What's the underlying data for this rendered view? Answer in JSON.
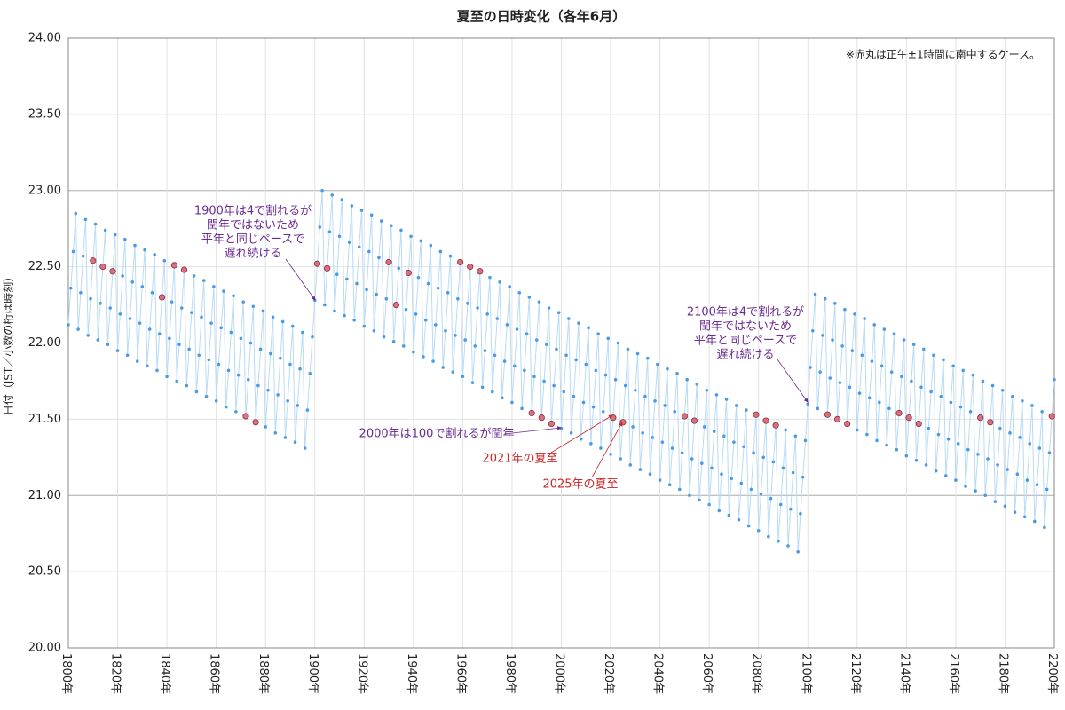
{
  "chart_data": {
    "type": "line",
    "title": "夏至の日時変化（各年6月）",
    "y_label": "日付（JST／小数の桁は時刻）",
    "note": "※赤丸は正午±1時間に南中するケース。",
    "x": [
      1800,
      1801,
      1802,
      1803,
      1804,
      1805,
      1806,
      1807,
      1808,
      1809,
      1810,
      1811,
      1812,
      1813,
      1814,
      1815,
      1816,
      1817,
      1818,
      1819,
      1820,
      1821,
      1822,
      1823,
      1824,
      1825,
      1826,
      1827,
      1828,
      1829,
      1830,
      1831,
      1832,
      1833,
      1834,
      1835,
      1836,
      1837,
      1838,
      1839,
      1840,
      1841,
      1842,
      1843,
      1844,
      1845,
      1846,
      1847,
      1848,
      1849,
      1850,
      1851,
      1852,
      1853,
      1854,
      1855,
      1856,
      1857,
      1858,
      1859,
      1860,
      1861,
      1862,
      1863,
      1864,
      1865,
      1866,
      1867,
      1868,
      1869,
      1870,
      1871,
      1872,
      1873,
      1874,
      1875,
      1876,
      1877,
      1878,
      1879,
      1880,
      1881,
      1882,
      1883,
      1884,
      1885,
      1886,
      1887,
      1888,
      1889,
      1890,
      1891,
      1892,
      1893,
      1894,
      1895,
      1896,
      1897,
      1898,
      1899,
      1900,
      1901,
      1902,
      1903,
      1904,
      1905,
      1906,
      1907,
      1908,
      1909,
      1910,
      1911,
      1912,
      1913,
      1914,
      1915,
      1916,
      1917,
      1918,
      1919,
      1920,
      1921,
      1922,
      1923,
      1924,
      1925,
      1926,
      1927,
      1928,
      1929,
      1930,
      1931,
      1932,
      1933,
      1934,
      1935,
      1936,
      1937,
      1938,
      1939,
      1940,
      1941,
      1942,
      1943,
      1944,
      1945,
      1946,
      1947,
      1948,
      1949,
      1950,
      1951,
      1952,
      1953,
      1954,
      1955,
      1956,
      1957,
      1958,
      1959,
      1960,
      1961,
      1962,
      1963,
      1964,
      1965,
      1966,
      1967,
      1968,
      1969,
      1970,
      1971,
      1972,
      1973,
      1974,
      1975,
      1976,
      1977,
      1978,
      1979,
      1980,
      1981,
      1982,
      1983,
      1984,
      1985,
      1986,
      1987,
      1988,
      1989,
      1990,
      1991,
      1992,
      1993,
      1994,
      1995,
      1996,
      1997,
      1998,
      1999,
      2000,
      2001,
      2002,
      2003,
      2004,
      2005,
      2006,
      2007,
      2008,
      2009,
      2010,
      2011,
      2012,
      2013,
      2014,
      2015,
      2016,
      2017,
      2018,
      2019,
      2020,
      2021,
      2022,
      2023,
      2024,
      2025,
      2026,
      2027,
      2028,
      2029,
      2030,
      2031,
      2032,
      2033,
      2034,
      2035,
      2036,
      2037,
      2038,
      2039,
      2040,
      2041,
      2042,
      2043,
      2044,
      2045,
      2046,
      2047,
      2048,
      2049,
      2050,
      2051,
      2052,
      2053,
      2054,
      2055,
      2056,
      2057,
      2058,
      2059,
      2060,
      2061,
      2062,
      2063,
      2064,
      2065,
      2066,
      2067,
      2068,
      2069,
      2070,
      2071,
      2072,
      2073,
      2074,
      2075,
      2076,
      2077,
      2078,
      2079,
      2080,
      2081,
      2082,
      2083,
      2084,
      2085,
      2086,
      2087,
      2088,
      2089,
      2090,
      2091,
      2092,
      2093,
      2094,
      2095,
      2096,
      2097,
      2098,
      2099,
      2100,
      2101,
      2102,
      2103,
      2104,
      2105,
      2106,
      2107,
      2108,
      2109,
      2110,
      2111,
      2112,
      2113,
      2114,
      2115,
      2116,
      2117,
      2118,
      2119,
      2120,
      2121,
      2122,
      2123,
      2124,
      2125,
      2126,
      2127,
      2128,
      2129,
      2130,
      2131,
      2132,
      2133,
      2134,
      2135,
      2136,
      2137,
      2138,
      2139,
      2140,
      2141,
      2142,
      2143,
      2144,
      2145,
      2146,
      2147,
      2148,
      2149,
      2150,
      2151,
      2152,
      2153,
      2154,
      2155,
      2156,
      2157,
      2158,
      2159,
      2160,
      2161,
      2162,
      2163,
      2164,
      2165,
      2166,
      2167,
      2168,
      2169,
      2170,
      2171,
      2172,
      2173,
      2174,
      2175,
      2176,
      2177,
      2178,
      2179,
      2180,
      2181,
      2182,
      2183,
      2184,
      2185,
      2186,
      2187,
      2188,
      2189,
      2190,
      2191,
      2192,
      2193,
      2194,
      2195,
      2196,
      2197,
      2198,
      2199,
      2200
    ],
    "series": [
      {
        "color": "#4a9be6",
        "line_color": "#b9dbf7",
        "values": [
          22.12,
          22.36,
          22.6,
          22.85,
          22.09,
          22.33,
          22.57,
          22.81,
          22.05,
          22.29,
          22.54,
          22.78,
          22.02,
          22.26,
          22.5,
          22.74,
          21.99,
          22.23,
          22.47,
          22.71,
          21.95,
          22.19,
          22.44,
          22.68,
          21.92,
          22.16,
          22.4,
          22.64,
          21.88,
          22.13,
          22.37,
          22.61,
          21.85,
          22.09,
          22.33,
          22.58,
          21.82,
          22.06,
          22.3,
          22.54,
          21.78,
          22.03,
          22.27,
          22.51,
          21.75,
          21.99,
          22.23,
          22.48,
          21.72,
          21.96,
          22.2,
          22.44,
          21.68,
          21.92,
          22.17,
          22.41,
          21.65,
          21.89,
          22.13,
          22.37,
          21.62,
          21.86,
          22.1,
          22.34,
          21.58,
          21.82,
          22.07,
          22.31,
          21.55,
          21.79,
          22.03,
          22.27,
          21.52,
          21.76,
          22.0,
          22.24,
          21.48,
          21.72,
          21.96,
          22.21,
          21.45,
          21.69,
          21.93,
          22.17,
          21.41,
          21.66,
          21.9,
          22.14,
          21.38,
          21.62,
          21.86,
          22.11,
          21.35,
          21.59,
          21.83,
          22.07,
          21.31,
          21.56,
          21.8,
          22.04,
          22.28,
          22.52,
          22.76,
          23.0,
          22.25,
          22.49,
          22.73,
          22.97,
          22.21,
          22.45,
          22.7,
          22.94,
          22.18,
          22.42,
          22.66,
          22.9,
          22.15,
          22.39,
          22.63,
          22.87,
          22.11,
          22.35,
          22.6,
          22.84,
          22.08,
          22.32,
          22.56,
          22.8,
          22.04,
          22.29,
          22.53,
          22.77,
          22.01,
          22.25,
          22.49,
          22.74,
          21.98,
          22.22,
          22.46,
          22.7,
          21.94,
          22.19,
          22.43,
          22.67,
          21.91,
          22.15,
          22.39,
          22.64,
          21.88,
          22.12,
          22.36,
          22.6,
          21.84,
          22.08,
          22.33,
          22.57,
          21.81,
          22.05,
          22.29,
          22.53,
          21.78,
          22.02,
          22.26,
          22.5,
          21.74,
          21.98,
          22.23,
          22.47,
          21.71,
          21.95,
          22.19,
          22.43,
          21.68,
          21.92,
          22.16,
          22.4,
          21.64,
          21.88,
          22.12,
          22.37,
          21.61,
          21.85,
          22.09,
          22.33,
          21.57,
          21.82,
          22.06,
          22.3,
          21.54,
          21.78,
          22.02,
          22.27,
          21.51,
          21.75,
          21.99,
          22.23,
          21.47,
          21.72,
          21.96,
          22.2,
          21.44,
          21.68,
          21.92,
          22.16,
          21.41,
          21.65,
          21.89,
          22.13,
          21.37,
          21.61,
          21.86,
          22.1,
          21.34,
          21.58,
          21.82,
          22.06,
          21.31,
          21.55,
          21.79,
          22.03,
          21.27,
          21.51,
          21.76,
          22.0,
          21.24,
          21.48,
          21.72,
          21.96,
          21.2,
          21.45,
          21.69,
          21.93,
          21.17,
          21.41,
          21.65,
          21.9,
          21.14,
          21.38,
          21.62,
          21.86,
          21.1,
          21.35,
          21.59,
          21.83,
          21.07,
          21.31,
          21.55,
          21.8,
          21.04,
          21.28,
          21.52,
          21.76,
          21.0,
          21.24,
          21.49,
          21.73,
          20.97,
          21.21,
          21.45,
          21.69,
          20.94,
          21.18,
          21.42,
          21.66,
          20.9,
          21.14,
          21.39,
          21.63,
          20.87,
          21.11,
          21.35,
          21.59,
          20.84,
          21.08,
          21.32,
          21.56,
          20.8,
          21.04,
          21.28,
          21.53,
          20.77,
          21.01,
          21.25,
          21.49,
          20.73,
          20.98,
          21.22,
          21.46,
          20.7,
          20.94,
          21.18,
          21.43,
          20.67,
          20.91,
          21.15,
          21.39,
          20.63,
          20.88,
          21.12,
          21.36,
          21.6,
          21.84,
          22.08,
          22.32,
          21.57,
          21.81,
          22.05,
          22.29,
          21.53,
          21.77,
          22.02,
          22.26,
          21.5,
          21.74,
          21.98,
          22.22,
          21.47,
          21.71,
          21.95,
          22.19,
          21.43,
          21.67,
          21.92,
          22.16,
          21.4,
          21.64,
          21.88,
          22.12,
          21.36,
          21.61,
          21.85,
          22.09,
          21.33,
          21.57,
          21.81,
          22.06,
          21.3,
          21.54,
          21.78,
          22.02,
          21.26,
          21.51,
          21.75,
          21.99,
          21.23,
          21.47,
          21.71,
          21.96,
          21.2,
          21.44,
          21.68,
          21.92,
          21.16,
          21.4,
          21.65,
          21.89,
          21.13,
          21.37,
          21.61,
          21.85,
          21.1,
          21.34,
          21.58,
          21.82,
          21.06,
          21.3,
          21.55,
          21.79,
          21.03,
          21.27,
          21.51,
          21.75,
          21.0,
          21.24,
          21.48,
          21.72,
          20.96,
          21.2,
          21.44,
          21.69,
          20.93,
          21.17,
          21.41,
          21.65,
          20.89,
          21.14,
          21.38,
          21.62,
          20.86,
          21.1,
          21.34,
          21.59,
          20.83,
          21.07,
          21.31,
          21.55,
          20.79,
          21.04,
          21.28,
          21.52,
          21.76
        ]
      }
    ],
    "highlight": {
      "color": "#d9707f",
      "x": [
        1810,
        1814,
        1818,
        1838,
        1843,
        1847,
        1872,
        1876,
        1901,
        1905,
        1930,
        1933,
        1938,
        1959,
        1963,
        1967,
        1988,
        1992,
        1996,
        2021,
        2025,
        2050,
        2054,
        2079,
        2083,
        2087,
        2108,
        2112,
        2116,
        2137,
        2141,
        2145,
        2170,
        2174,
        2199
      ]
    },
    "xlim": [
      1800,
      2200
    ],
    "xticks": [
      {
        "value": 1800,
        "label": "1800年"
      },
      {
        "value": 1820,
        "label": "1820年"
      },
      {
        "value": 1840,
        "label": "1840年"
      },
      {
        "value": 1860,
        "label": "1860年"
      },
      {
        "value": 1880,
        "label": "1880年"
      },
      {
        "value": 1900,
        "label": "1900年"
      },
      {
        "value": 1920,
        "label": "1920年"
      },
      {
        "value": 1940,
        "label": "1940年"
      },
      {
        "value": 1960,
        "label": "1960年"
      },
      {
        "value": 1980,
        "label": "1980年"
      },
      {
        "value": 2000,
        "label": "2000年"
      },
      {
        "value": 2020,
        "label": "2020年"
      },
      {
        "value": 2040,
        "label": "2040年"
      },
      {
        "value": 2060,
        "label": "2060年"
      },
      {
        "value": 2080,
        "label": "2080年"
      },
      {
        "value": 2100,
        "label": "2100年"
      },
      {
        "value": 2120,
        "label": "2120年"
      },
      {
        "value": 2140,
        "label": "2140年"
      },
      {
        "value": 2160,
        "label": "2160年"
      },
      {
        "value": 2180,
        "label": "2180年"
      },
      {
        "value": 2200,
        "label": "2200年"
      }
    ],
    "ylim": [
      20,
      24
    ],
    "yticks": [
      {
        "value": 20,
        "label": "20.00"
      },
      {
        "value": 20.5,
        "label": "20.50"
      },
      {
        "value": 21,
        "label": "21.00"
      },
      {
        "value": 21.5,
        "label": "21.50"
      },
      {
        "value": 22,
        "label": "22.00"
      },
      {
        "value": 22.5,
        "label": "22.50"
      },
      {
        "value": 23,
        "label": "23.00"
      },
      {
        "value": 23.5,
        "label": "23.50"
      },
      {
        "value": 24,
        "label": "24.00"
      }
    ],
    "grid": true,
    "annotations": [
      {
        "text": [
          "1900年は4で割れるが",
          "閏年ではないため",
          "平年と同じペースで",
          "遅れ続ける"
        ],
        "color": "#6b2c91"
      },
      {
        "text": [
          "2100年は4で割れるが",
          "閏年ではないため",
          "平年と同じペースで",
          "遅れ続ける"
        ],
        "color": "#6b2c91"
      },
      {
        "text": [
          "2000年は100で割れるが閏年"
        ],
        "color": "#6b2c91"
      },
      {
        "text": [
          "2021年の夏至"
        ],
        "color": "#c62828"
      },
      {
        "text": [
          "2025年の夏至"
        ],
        "color": "#c62828"
      }
    ]
  }
}
